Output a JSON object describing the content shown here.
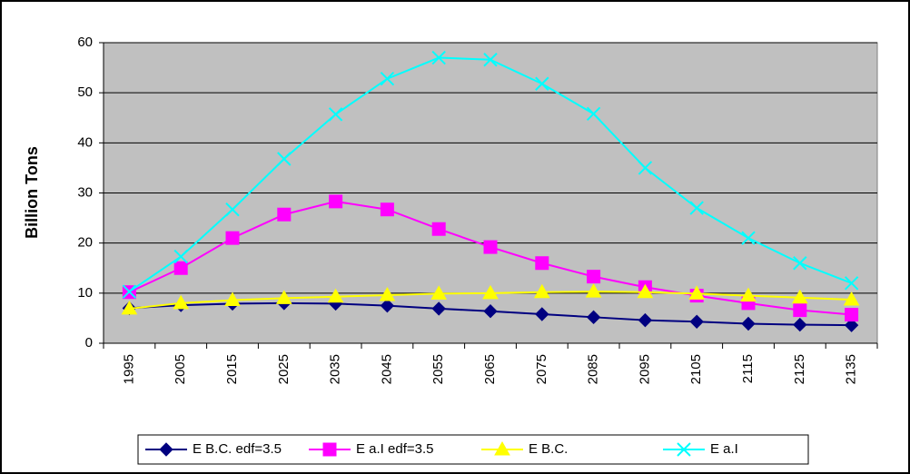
{
  "chart_data": {
    "type": "line",
    "ylabel": "Billion Tons",
    "categories": [
      "1995",
      "2005",
      "2015",
      "2025",
      "2035",
      "2045",
      "2055",
      "2065",
      "2075",
      "2085",
      "2095",
      "2105",
      "2115",
      "2125",
      "2135"
    ],
    "ylim": [
      0,
      60
    ],
    "yticks": [
      0,
      10,
      20,
      30,
      40,
      50,
      60
    ],
    "grid": true,
    "series": [
      {
        "name": "E B.C. edf=3.5",
        "color": "#000080",
        "marker": "diamond",
        "values": [
          7.0,
          7.6,
          7.9,
          8.0,
          7.9,
          7.5,
          6.9,
          6.4,
          5.8,
          5.2,
          4.6,
          4.3,
          3.9,
          3.7,
          3.6
        ]
      },
      {
        "name": "E a.I edf=3.5",
        "color": "#ff00ff",
        "marker": "square",
        "values": [
          10.2,
          15.0,
          21.0,
          25.7,
          28.3,
          26.7,
          22.8,
          19.2,
          16.0,
          13.3,
          11.2,
          9.5,
          8.0,
          6.6,
          5.7
        ]
      },
      {
        "name": "E B.C.",
        "color": "#ffff00",
        "marker": "triangle",
        "values": [
          6.9,
          8.0,
          8.6,
          9.0,
          9.3,
          9.6,
          9.9,
          10.0,
          10.2,
          10.3,
          10.2,
          9.9,
          9.5,
          9.1,
          8.7
        ]
      },
      {
        "name": "E a.I",
        "color": "#00ffff",
        "marker": "x",
        "values": [
          10.3,
          17.3,
          26.7,
          36.8,
          45.7,
          52.8,
          57.0,
          56.6,
          51.8,
          45.8,
          35.0,
          27.0,
          21.0,
          16.0,
          12.0
        ]
      }
    ]
  }
}
